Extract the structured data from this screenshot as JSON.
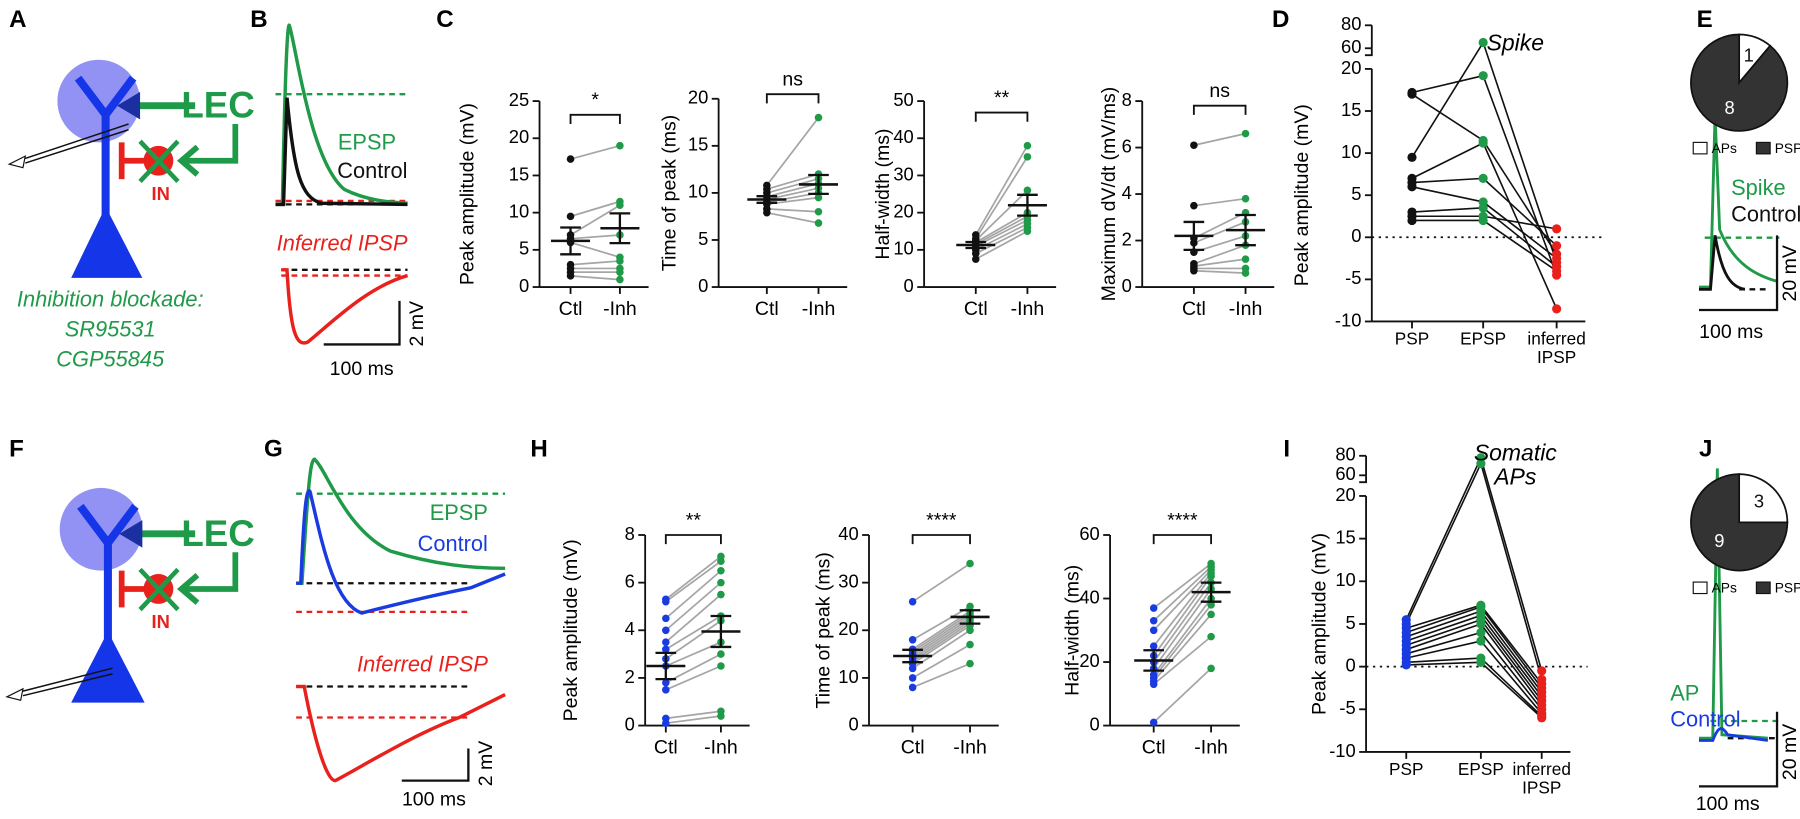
{
  "panel_a": {
    "label": "A",
    "target": "LEC",
    "interneuron": "IN",
    "condition": [
      "Inhibition blockade:",
      "SR95531",
      "CGP55845"
    ]
  },
  "panel_b": {
    "label": "B",
    "traces": [
      "EPSP",
      "Control"
    ],
    "inferred": "Inferred IPSP",
    "scale_y": "2 mV",
    "scale_x": "100 ms"
  },
  "panel_c": {
    "label": "C",
    "charts": [
      {
        "type": "paired",
        "ylabel": "Peak amplitude (mV)",
        "ylim": [
          0,
          25
        ],
        "yticks": [
          0,
          5,
          10,
          15,
          20,
          25
        ],
        "categories": [
          "Ctl",
          "-Inh"
        ],
        "significance": "*",
        "colors": [
          "#111111",
          "#1f9a48"
        ],
        "values": [
          [
            17.2,
            9.5,
            7,
            6.5,
            6,
            3,
            2.5,
            2,
            1.5
          ],
          [
            19,
            11.5,
            11,
            7,
            4,
            3.5,
            2.5,
            2,
            1
          ]
        ],
        "mean": [
          6.2,
          7.9
        ],
        "sem": [
          1.8,
          2.0
        ]
      },
      {
        "type": "paired",
        "ylabel": "Time of peak (ms)",
        "ylim": [
          0,
          20
        ],
        "yticks": [
          0,
          5,
          10,
          15,
          20
        ],
        "categories": [
          "Ctl",
          "-Inh"
        ],
        "significance": "ns",
        "colors": [
          "#111111",
          "#1f9a48"
        ],
        "values": [
          [
            10.8,
            10.4,
            10,
            9.6,
            9.3,
            9,
            8.8,
            8.3,
            7.9
          ],
          [
            18,
            12,
            11.5,
            11,
            10.5,
            10,
            9.5,
            8,
            6.8
          ]
        ],
        "mean": [
          9.3,
          10.9
        ],
        "sem": [
          0.35,
          1.0
        ]
      },
      {
        "type": "paired",
        "ylabel": "Half-width (ms)",
        "ylim": [
          0,
          50
        ],
        "yticks": [
          0,
          10,
          20,
          30,
          40,
          50
        ],
        "categories": [
          "Ctl",
          "-Inh"
        ],
        "significance": "**",
        "colors": [
          "#111111",
          "#1f9a48"
        ],
        "values": [
          [
            14,
            13,
            12.5,
            12,
            11.5,
            11,
            10,
            9,
            7.5
          ],
          [
            38,
            35,
            26,
            20,
            19,
            18,
            17,
            16,
            15
          ]
        ],
        "mean": [
          11.3,
          22
        ],
        "sem": [
          0.8,
          2.8
        ]
      },
      {
        "type": "paired",
        "ylabel": "Maximum dV/dt (mV/ms)",
        "ylim": [
          0,
          8
        ],
        "yticks": [
          0,
          2,
          4,
          6,
          8
        ],
        "categories": [
          "Ctl",
          "-Inh"
        ],
        "significance": "ns",
        "colors": [
          "#111111",
          "#1f9a48"
        ],
        "values": [
          [
            6.1,
            3.5,
            2.1,
            1.9,
            1.5,
            1,
            0.9,
            0.8,
            0.7
          ],
          [
            6.6,
            3.8,
            3.2,
            2.8,
            2.2,
            1.8,
            1.2,
            0.8,
            0.6
          ]
        ],
        "mean": [
          2.2,
          2.45
        ],
        "sem": [
          0.6,
          0.65
        ]
      }
    ]
  },
  "panel_d": {
    "label": "D",
    "chart": {
      "type": "cells",
      "ylabel": "Peak amplitude (mV)",
      "ylim": [
        -10,
        80
      ],
      "axis_break": [
        20,
        60
      ],
      "yticks": [
        -10,
        -5,
        0,
        5,
        10,
        15,
        20,
        60,
        80
      ],
      "categories": [
        "PSP",
        "EPSP",
        "inferred IPSP"
      ],
      "colors": [
        "#111111",
        "#1f9a48",
        "#e8211d"
      ],
      "annotation": "Spike",
      "cells": [
        [
          17.2,
          19.2,
          -4.5
        ],
        [
          17,
          11.5,
          -2
        ],
        [
          9.5,
          65,
          -3
        ],
        [
          7,
          11.2,
          -8.5
        ],
        [
          6.5,
          7,
          -1
        ],
        [
          6,
          4.2,
          -2.5
        ],
        [
          3,
          3.5,
          -3.5
        ],
        [
          2.5,
          2.5,
          1
        ],
        [
          2,
          2,
          -4
        ]
      ]
    }
  },
  "panel_e": {
    "label": "E",
    "pie": {
      "type": "pie",
      "categories": [
        "APs",
        "PSPs"
      ],
      "values": [
        1,
        8
      ],
      "colors": [
        "#ffffff",
        "#333333"
      ]
    },
    "traces": [
      "Spike",
      "Control"
    ],
    "scale_y": "20 mV",
    "scale_x": "100 ms"
  },
  "panel_f": {
    "label": "F",
    "target": "LEC",
    "interneuron": "IN"
  },
  "panel_g": {
    "label": "G",
    "traces": [
      "EPSP",
      "Control"
    ],
    "inferred": "Inferred IPSP",
    "scale_y": "2 mV",
    "scale_x": "100 ms"
  },
  "panel_h": {
    "label": "H",
    "charts": [
      {
        "type": "paired",
        "ylabel": "Peak amplitude (mV)",
        "ylim": [
          0,
          8
        ],
        "yticks": [
          0,
          2,
          4,
          6,
          8
        ],
        "categories": [
          "Ctl",
          "-Inh"
        ],
        "significance": "**",
        "colors": [
          "#1a3be0",
          "#1f9a48"
        ],
        "values": [
          [
            5.3,
            5.2,
            4.5,
            4.0,
            3.5,
            3.2,
            2.8,
            2.5,
            1.8,
            1.5,
            0.3,
            0.1
          ],
          [
            7.1,
            6.9,
            6.5,
            6.0,
            5.5,
            4.6,
            4.4,
            3.5,
            3.0,
            2.5,
            0.6,
            0.4
          ]
        ],
        "mean": [
          2.5,
          3.95
        ],
        "sem": [
          0.55,
          0.65
        ]
      },
      {
        "type": "paired",
        "ylabel": "Time of peak (ms)",
        "ylim": [
          0,
          40
        ],
        "yticks": [
          0,
          10,
          20,
          30,
          40
        ],
        "categories": [
          "Ctl",
          "-Inh"
        ],
        "significance": "****",
        "colors": [
          "#1a3be0",
          "#1f9a48"
        ],
        "values": [
          [
            26,
            18,
            16,
            15.5,
            15,
            14.5,
            14,
            13.5,
            13,
            12,
            10,
            8
          ],
          [
            34,
            25,
            24,
            23.5,
            23,
            22.5,
            22,
            21.5,
            21,
            20,
            17,
            13
          ]
        ],
        "mean": [
          14.6,
          22.8
        ],
        "sem": [
          1.3,
          1.4
        ]
      },
      {
        "type": "paired",
        "ylabel": "Half-width (ms)",
        "ylim": [
          0,
          60
        ],
        "yticks": [
          0,
          20,
          40,
          60
        ],
        "categories": [
          "Ctl",
          "-Inh"
        ],
        "significance": "****",
        "colors": [
          "#1a3be0",
          "#1f9a48"
        ],
        "values": [
          [
            37,
            33,
            30,
            25,
            22,
            20,
            18,
            16,
            15,
            14,
            13,
            1
          ],
          [
            51,
            50,
            49,
            48,
            47,
            45,
            43,
            40,
            38,
            35,
            28,
            18
          ]
        ],
        "mean": [
          20.5,
          42
        ],
        "sem": [
          3.2,
          3.0
        ]
      }
    ]
  },
  "panel_i": {
    "label": "I",
    "chart": {
      "type": "cells",
      "ylabel": "Peak amplitude (mV)",
      "ylim": [
        -10,
        80
      ],
      "axis_break": [
        20,
        60
      ],
      "yticks": [
        -10,
        -5,
        0,
        5,
        10,
        15,
        20,
        60,
        80
      ],
      "categories": [
        "PSP",
        "EPSP",
        "inferred IPSP"
      ],
      "colors": [
        "#1a3be0",
        "#1f9a48",
        "#e8211d"
      ],
      "annotation": "Somatic APs",
      "cells": [
        [
          5.5,
          78,
          -0.5
        ],
        [
          5,
          72,
          -1.5
        ],
        [
          4.5,
          7.2,
          -2
        ],
        [
          4,
          7,
          -2.5
        ],
        [
          3.5,
          6.5,
          -3
        ],
        [
          3,
          6,
          -3.5
        ],
        [
          2.5,
          5.5,
          -4
        ],
        [
          2,
          5,
          -4.5
        ],
        [
          1.5,
          4,
          -5
        ],
        [
          1,
          3,
          -5.5
        ],
        [
          0.5,
          1,
          -5.8
        ],
        [
          0.2,
          0.5,
          -6
        ]
      ]
    }
  },
  "panel_j": {
    "label": "J",
    "pie": {
      "type": "pie",
      "categories": [
        "APs",
        "PSPs"
      ],
      "values": [
        3,
        9
      ],
      "colors": [
        "#ffffff",
        "#333333"
      ]
    },
    "traces": [
      "AP",
      "Control"
    ],
    "scale_y": "20 mV",
    "scale_x": "100 ms"
  }
}
